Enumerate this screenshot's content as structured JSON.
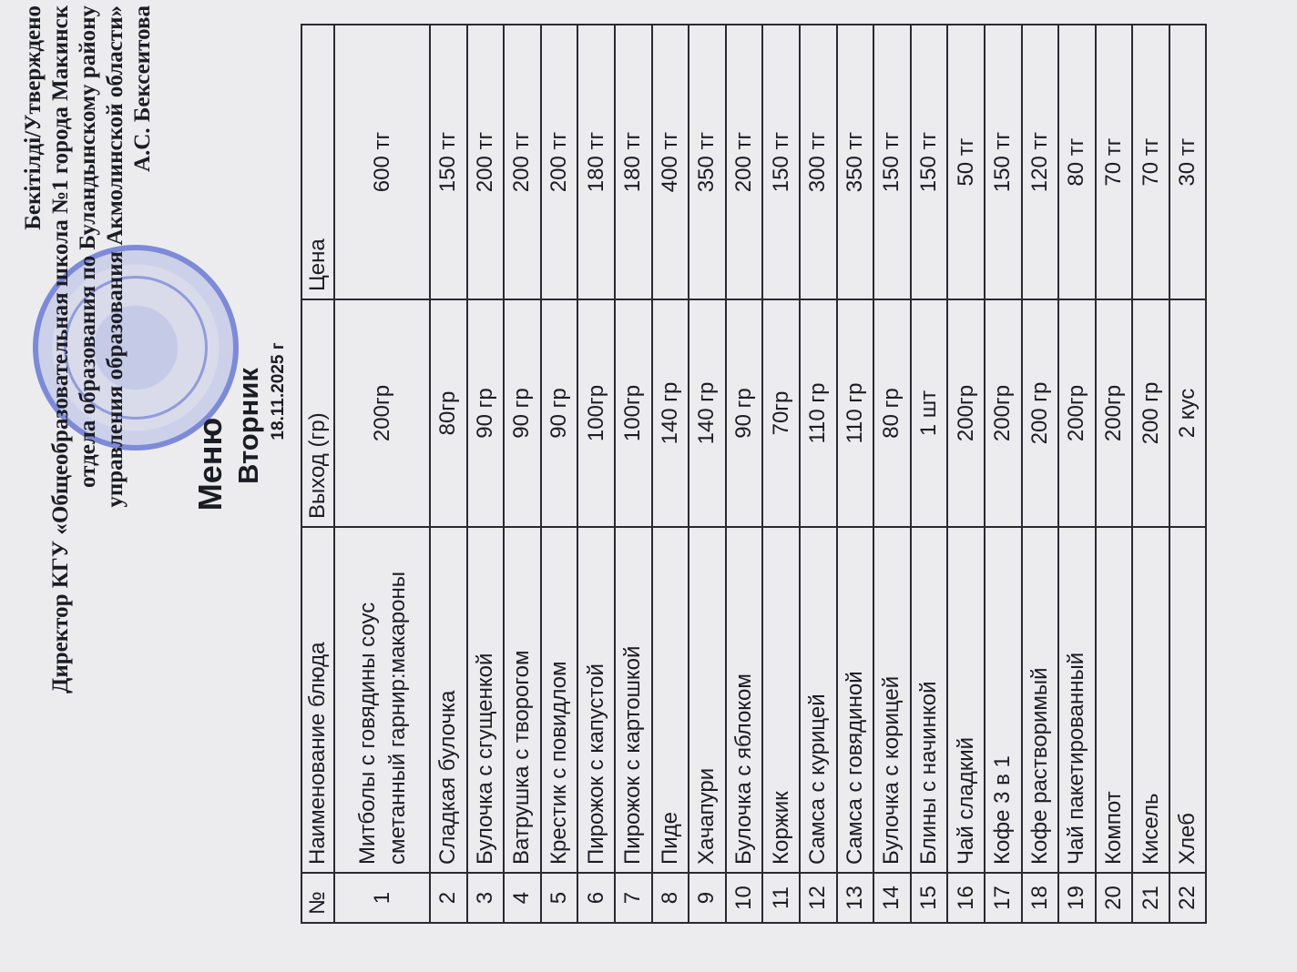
{
  "header": {
    "approval": "Бекітілді/Утверждено",
    "lines": [
      "Директор КГУ «Общеобразовательная школа №1 города Макинск",
      "отдела образования по Буландынскому району",
      "управления образования Акмолинской области»"
    ],
    "signature": "А.С. Бексеитова"
  },
  "title": "Меню",
  "day": "Вторник",
  "date": "18.11.2025 г",
  "table": {
    "columns": [
      "№",
      "Наименование блюда",
      "Выход (гр)",
      "Цена"
    ],
    "rows": [
      [
        "1",
        "Митболы с говядины соус сметанный гарнир:макароны",
        "200гр",
        "600 тг"
      ],
      [
        "2",
        "Сладкая булочка",
        "80гр",
        "150 тг"
      ],
      [
        "3",
        "Булочка с сгущенкой",
        "90 гр",
        "200 тг"
      ],
      [
        "4",
        "Ватрушка с творогом",
        "90 гр",
        "200 тг"
      ],
      [
        "5",
        "Крестик с повидлом",
        "90 гр",
        "200 тг"
      ],
      [
        "6",
        "Пирожок с капустой",
        "100гр",
        "180 тг"
      ],
      [
        "7",
        "Пирожок с картошкой",
        "100гр",
        "180 тг"
      ],
      [
        "8",
        "Пиде",
        "140 гр",
        "400 тг"
      ],
      [
        "9",
        "Хачапури",
        "140 гр",
        "350 тг"
      ],
      [
        "10",
        "Булочка с яблоком",
        "90 гр",
        "200 тг"
      ],
      [
        "11",
        "Коржик",
        "70гр",
        "150 тг"
      ],
      [
        "12",
        "Самса с курицей",
        "110 гр",
        "300 тг"
      ],
      [
        "13",
        "Самса с говядиной",
        "110 гр",
        "350 тг"
      ],
      [
        "14",
        "Булочка с корицей",
        "80 гр",
        "150 тг"
      ],
      [
        "15",
        "Блины с начинкой",
        "1 шт",
        "150 тг"
      ],
      [
        "16",
        "Чай сладкий",
        "200гр",
        "50 тг"
      ],
      [
        "17",
        "Кофе 3 в 1",
        "200гр",
        "150 тг"
      ],
      [
        "18",
        "Кофе растворимый",
        "200 гр",
        "120 тг"
      ],
      [
        "19",
        "Чай пакетированный",
        "200гр",
        "80 тг"
      ],
      [
        "20",
        "Компот",
        "200гр",
        "70 тг"
      ],
      [
        "21",
        "Кисель",
        "200 гр",
        "70 тг"
      ],
      [
        "22",
        "Хлеб",
        "2 кус",
        "30 тг"
      ]
    ]
  }
}
